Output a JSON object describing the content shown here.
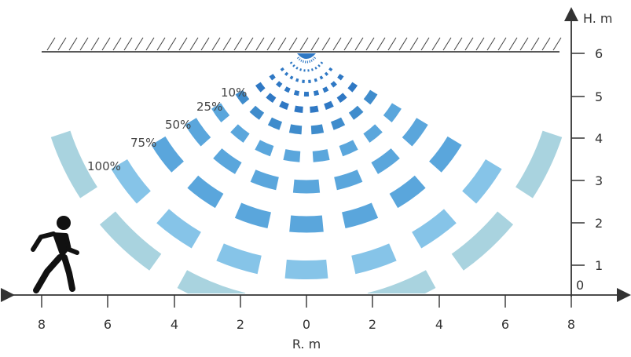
{
  "axes": {
    "vertical_title": "H. m",
    "horizontal_title": "R. m",
    "vertical_ticks": [
      "0",
      "1",
      "2",
      "3",
      "4",
      "5",
      "6"
    ],
    "horizontal_ticks": [
      "8",
      "6",
      "4",
      "2",
      "0",
      "2",
      "4",
      "6",
      "8"
    ]
  },
  "coverage_labels": [
    "10%",
    "25%",
    "50%",
    "75%",
    "100%"
  ],
  "colors": {
    "ring_inner": "#2f78c4",
    "ring_mid": "#5aa6dc",
    "ring_outer": "#86c4e8",
    "ring_faint": "#a9d3df",
    "axis": "#333333",
    "ceiling": "#222222",
    "person": "#111111"
  },
  "icons": {
    "sensor": "sensor-dome-icon",
    "person": "walking-person-icon"
  }
}
